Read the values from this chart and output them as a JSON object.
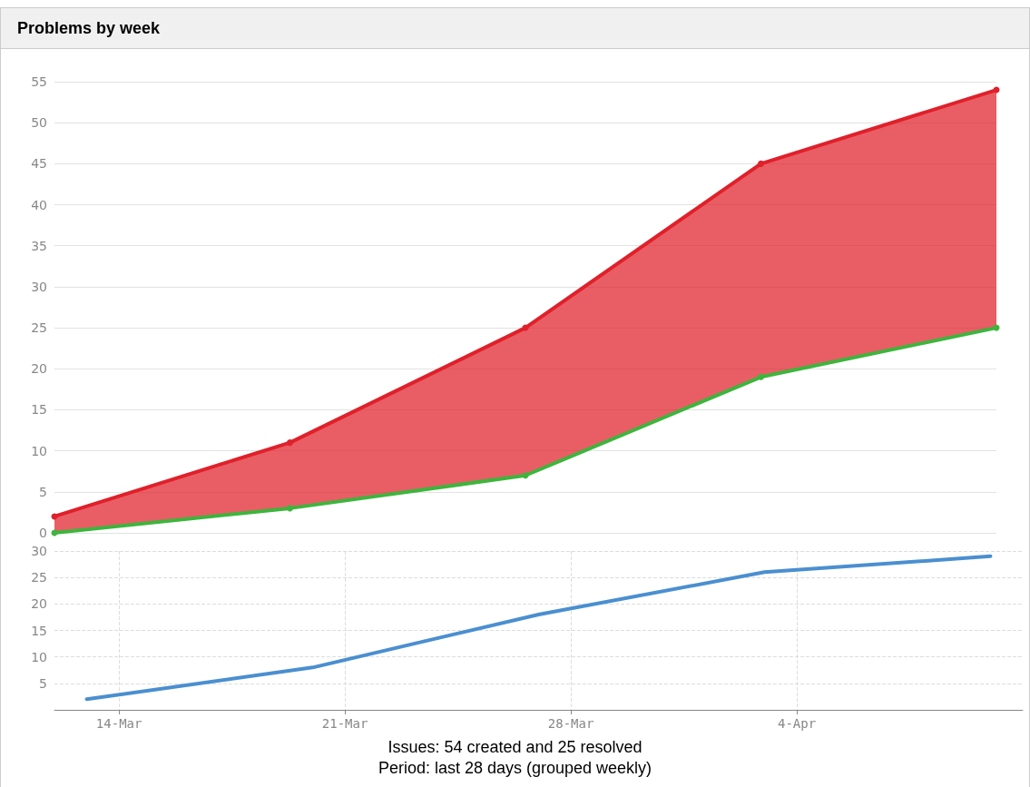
{
  "chart_data": [
    {
      "type": "line",
      "title": "Problems by week",
      "categories": [
        null,
        null,
        null,
        null,
        null
      ],
      "series": [
        {
          "color": "#e0202a",
          "values": [
            2,
            11,
            25,
            45,
            54
          ],
          "lower": [
            0,
            3,
            7,
            19,
            25
          ],
          "upper": [
            2,
            11,
            25,
            45,
            54
          ]
        },
        {
          "color": "#3db53d",
          "values": [
            0,
            3,
            7,
            19,
            25
          ]
        }
      ],
      "ylim": [
        0,
        55
      ],
      "yticks": [
        0,
        5,
        10,
        15,
        20,
        25,
        30,
        35,
        40,
        45,
        50,
        55
      ],
      "grid": "y",
      "marker": "circle",
      "tick_labels": "y"
    },
    {
      "type": "line",
      "x": [
        "--03-13",
        "--03-20",
        "--03-27",
        "--04-03",
        "--04-10"
      ],
      "series": [
        {
          "color": "#4a8fd0",
          "values": [
            2,
            8,
            18,
            26,
            29
          ]
        }
      ],
      "xlim": [
        "--03-12",
        "--04-11"
      ],
      "xticks": [
        {
          "value": "--03-14",
          "label": "14-Mar"
        },
        {
          "value": "--03-21",
          "label": "21-Mar"
        },
        {
          "value": "--03-28",
          "label": "28-Mar"
        },
        {
          "value": "--04-04",
          "label": "4-Apr"
        }
      ],
      "ylim": [
        0,
        30
      ],
      "yticks": [
        5,
        10,
        15,
        20,
        25,
        30
      ],
      "grid": true,
      "line_style": "solid",
      "marker": "none",
      "annotations": [
        "Issues: 54 created and 25 resolved",
        "Period: last 28 days (grouped weekly)"
      ]
    }
  ]
}
